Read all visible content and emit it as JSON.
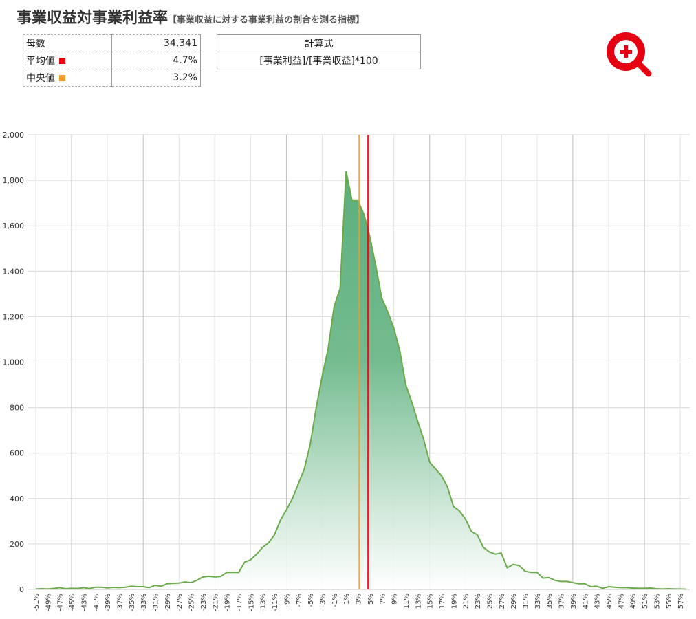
{
  "header": {
    "title": "事業収益対事業利益率",
    "subtitle": "【事業収益に対する事業利益の割合を測る指標】"
  },
  "summary": {
    "count_label": "母数",
    "count": "34,341",
    "formula_label": "計算式",
    "formula": "[事業利益]/[事業収益]*100"
  },
  "chart_data": {
    "type": "area",
    "x": [
      -51,
      -50,
      -49,
      -48,
      -47,
      -46,
      -45,
      -44,
      -43,
      -42,
      -41,
      -40,
      -39,
      -38,
      -37,
      -36,
      -35,
      -34,
      -33,
      -32,
      -31,
      -30,
      -29,
      -28,
      -27,
      -26,
      -25,
      -24,
      -23,
      -22,
      -21,
      -20,
      -19,
      -18,
      -17,
      -16,
      -15,
      -14,
      -13,
      -12,
      -11,
      -10,
      -9,
      -8,
      -7,
      -6,
      -5,
      -4,
      -3,
      -2,
      -1,
      0,
      1,
      2,
      3,
      4,
      5,
      6,
      7,
      8,
      9,
      10,
      11,
      12,
      13,
      14,
      15,
      16,
      17,
      18,
      19,
      20,
      21,
      22,
      23,
      24,
      25,
      26,
      27,
      28,
      29,
      30,
      31,
      32,
      33,
      34,
      35,
      36,
      37,
      38,
      39,
      40,
      41,
      42,
      43,
      44,
      45,
      46,
      47,
      48,
      49,
      50,
      51,
      52,
      53,
      54,
      55,
      56,
      57,
      58
    ],
    "values": [
      2,
      3,
      2,
      4,
      8,
      3,
      5,
      4,
      8,
      4,
      10,
      10,
      7,
      9,
      8,
      10,
      14,
      12,
      12,
      8,
      18,
      14,
      25,
      27,
      28,
      33,
      30,
      40,
      55,
      58,
      55,
      57,
      75,
      75,
      75,
      120,
      130,
      155,
      185,
      205,
      240,
      305,
      350,
      400,
      465,
      530,
      640,
      800,
      940,
      1060,
      1245,
      1325,
      1840,
      1710,
      1710,
      1650,
      1550,
      1420,
      1280,
      1220,
      1150,
      1050,
      900,
      825,
      740,
      660,
      560,
      530,
      500,
      450,
      365,
      345,
      310,
      255,
      240,
      185,
      165,
      155,
      160,
      95,
      110,
      105,
      80,
      75,
      75,
      50,
      52,
      40,
      35,
      35,
      30,
      25,
      25,
      12,
      14,
      5,
      12,
      10,
      8,
      8,
      6,
      5,
      5,
      6,
      3,
      2,
      3,
      2,
      2,
      1
    ],
    "color": "#6aaa4a",
    "xlim": [
      -51,
      58.6
    ],
    "ylim": [
      0,
      2000
    ],
    "yticks": [
      0,
      200,
      400,
      600,
      800,
      {
        "value": 1000,
        "label": "1,000"
      },
      {
        "value": 1200,
        "label": "1,200"
      },
      {
        "value": 1400,
        "label": "1,400"
      },
      {
        "value": 1600,
        "label": "1,600"
      },
      {
        "value": 1800,
        "label": "1,800"
      },
      {
        "value": 2000,
        "label": "2,000"
      }
    ],
    "xticks": [
      {
        "value": -51,
        "label": "-51%"
      },
      {
        "value": -49,
        "label": "-49%"
      },
      {
        "value": -47,
        "label": "-47%"
      },
      {
        "value": -45,
        "label": "-45%"
      },
      {
        "value": -43,
        "label": "-43%"
      },
      {
        "value": -41,
        "label": "-41%"
      },
      {
        "value": -39,
        "label": "-39%"
      },
      {
        "value": -37,
        "label": "-37%"
      },
      {
        "value": -35,
        "label": "-35%"
      },
      {
        "value": -33,
        "label": "-33%"
      },
      {
        "value": -31,
        "label": "-31%"
      },
      {
        "value": -29,
        "label": "-29%"
      },
      {
        "value": -27,
        "label": "-27%"
      },
      {
        "value": -25,
        "label": "-25%"
      },
      {
        "value": -23,
        "label": "-23%"
      },
      {
        "value": -21,
        "label": "-21%"
      },
      {
        "value": -19,
        "label": "-19%"
      },
      {
        "value": -17,
        "label": "-17%"
      },
      {
        "value": -15,
        "label": "-15%"
      },
      {
        "value": -13,
        "label": "-13%"
      },
      {
        "value": -11,
        "label": "-11%"
      },
      {
        "value": -9,
        "label": "-9%"
      },
      {
        "value": -7,
        "label": "-7%"
      },
      {
        "value": -5,
        "label": "-5%"
      },
      {
        "value": -3,
        "label": "-3%"
      },
      {
        "value": -1,
        "label": "-1%"
      },
      {
        "value": 1,
        "label": "1%"
      },
      {
        "value": 3,
        "label": "3%"
      },
      {
        "value": 5,
        "label": "5%"
      },
      {
        "value": 7,
        "label": "7%"
      },
      {
        "value": 9,
        "label": "9%"
      },
      {
        "value": 11,
        "label": "11%"
      },
      {
        "value": 13,
        "label": "13%"
      },
      {
        "value": 15,
        "label": "15%"
      },
      {
        "value": 17,
        "label": "17%"
      },
      {
        "value": 19,
        "label": "19%"
      },
      {
        "value": 21,
        "label": "21%"
      },
      {
        "value": 23,
        "label": "23%"
      },
      {
        "value": 25,
        "label": "25%"
      },
      {
        "value": 27,
        "label": "27%"
      },
      {
        "value": 29,
        "label": "29%"
      },
      {
        "value": 31,
        "label": "31%"
      },
      {
        "value": 33,
        "label": "33%"
      },
      {
        "value": 35,
        "label": "35%"
      },
      {
        "value": 37,
        "label": "37%"
      },
      {
        "value": 39,
        "label": "39%"
      },
      {
        "value": 41,
        "label": "41%"
      },
      {
        "value": 43,
        "label": "43%"
      },
      {
        "value": 45,
        "label": "45%"
      },
      {
        "value": 47,
        "label": "47%"
      },
      {
        "value": 49,
        "label": "49%"
      },
      {
        "value": 51,
        "label": "51%"
      },
      {
        "value": 53,
        "label": "53%"
      },
      {
        "value": 55,
        "label": "55%"
      },
      {
        "value": 57,
        "label": "57%"
      }
    ],
    "grid": true,
    "reference_lines": [
      {
        "name": "平均値",
        "value": 4.7,
        "label": "4.7%",
        "color": "#e60012"
      },
      {
        "name": "中央値",
        "value": 3.2,
        "label": "3.2%",
        "color": "#f39a2e"
      }
    ]
  }
}
